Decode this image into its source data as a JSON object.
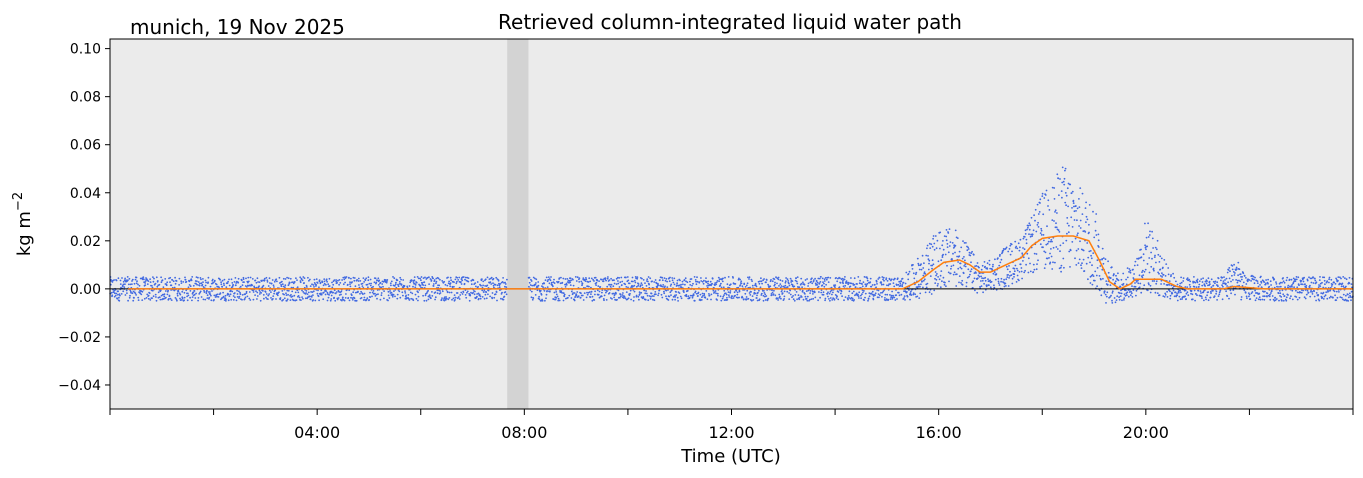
{
  "chart_data": {
    "type": "scatter",
    "title": "Retrieved column-integrated liquid water path",
    "subtitle": "munich, 19 Nov 2025",
    "xlabel": "Time (UTC)",
    "ylabel": "kg m",
    "ylabel_exponent": "−2",
    "xlim_hours": [
      0,
      24
    ],
    "ylim": [
      -0.05,
      0.104
    ],
    "x_ticks": [
      "04:00",
      "08:00",
      "12:00",
      "16:00",
      "20:00"
    ],
    "y_ticks": [
      "0.10",
      "0.08",
      "0.06",
      "0.04",
      "0.02",
      "0.00",
      "−0.02",
      "−0.04"
    ],
    "grid": false,
    "background_color": "#ebebeb",
    "scatter_color": "#4169e1",
    "line_color": "#ff7f0e",
    "shaded_gap_hours": [
      7.67,
      8.08
    ],
    "shaded_gap_color": "#d3d3d3",
    "series": [
      {
        "kind": "smoothed-line",
        "x_hours": [
          0.35,
          2,
          4,
          6,
          7.6,
          8.1,
          10,
          12,
          14,
          15.3,
          15.6,
          15.9,
          16.1,
          16.4,
          16.6,
          16.8,
          17.0,
          17.3,
          17.6,
          17.8,
          18.0,
          18.3,
          18.6,
          18.9,
          19.1,
          19.3,
          19.5,
          19.7,
          19.8,
          20.0,
          20.3,
          20.6,
          20.8,
          21.5,
          21.7,
          22.3,
          24
        ],
        "y": [
          0.0,
          0.0,
          0.0,
          0.0,
          0.0,
          0.0,
          0.0,
          0.0,
          0.0,
          0.0,
          0.003,
          0.008,
          0.011,
          0.012,
          0.01,
          0.007,
          0.007,
          0.01,
          0.013,
          0.018,
          0.021,
          0.022,
          0.022,
          0.02,
          0.012,
          0.003,
          0.0,
          0.002,
          0.004,
          0.004,
          0.004,
          0.001,
          0.0,
          0.0,
          0.001,
          0.0,
          0.0
        ]
      },
      {
        "kind": "scatter-envelope",
        "x_hours": [
          0,
          15.3,
          15.6,
          15.9,
          16.1,
          16.4,
          16.6,
          16.8,
          17.0,
          17.3,
          17.6,
          17.8,
          18.0,
          18.2,
          18.4,
          18.6,
          18.8,
          19.0,
          19.2,
          19.4,
          19.6,
          19.8,
          20.0,
          20.2,
          20.4,
          20.6,
          21.5,
          21.7,
          21.9,
          22.3,
          24
        ],
        "upper": [
          0.005,
          0.005,
          0.013,
          0.022,
          0.026,
          0.024,
          0.017,
          0.011,
          0.012,
          0.018,
          0.022,
          0.03,
          0.04,
          0.044,
          0.053,
          0.047,
          0.04,
          0.035,
          0.018,
          0.006,
          0.008,
          0.012,
          0.03,
          0.022,
          0.01,
          0.005,
          0.005,
          0.015,
          0.006,
          0.005,
          0.005
        ],
        "lower": [
          -0.005,
          -0.005,
          -0.004,
          -0.002,
          0.0,
          0.001,
          -0.001,
          -0.002,
          -0.001,
          0.0,
          0.004,
          0.006,
          0.008,
          0.008,
          0.006,
          0.006,
          0.005,
          0.0,
          -0.006,
          -0.006,
          -0.005,
          -0.003,
          -0.002,
          -0.003,
          -0.004,
          -0.005,
          -0.005,
          -0.004,
          -0.005,
          -0.005,
          -0.005
        ]
      }
    ]
  }
}
